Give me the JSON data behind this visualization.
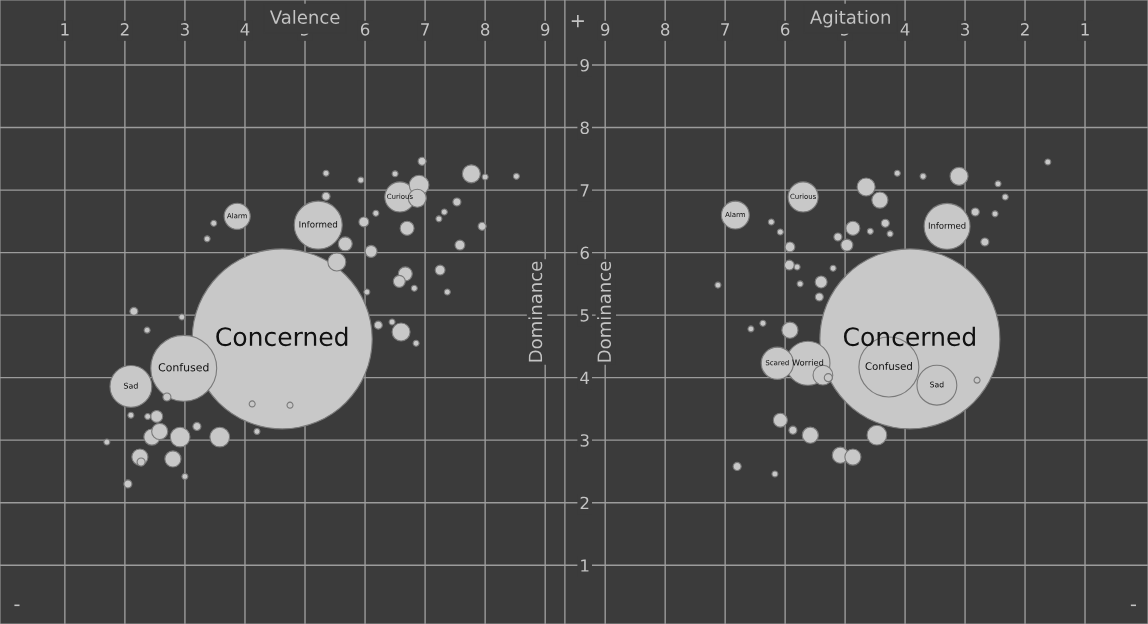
{
  "chart_data": [
    {
      "type": "bubble",
      "xlabel": "Valence",
      "ylabel": "Dominance",
      "xlim": [
        -0.08,
        9.33
      ],
      "ylim": [
        0.06,
        10.04
      ],
      "xticks": [
        1,
        2,
        3,
        4,
        5,
        6,
        7,
        8,
        9
      ],
      "yticks": [
        1,
        2,
        3,
        4,
        5,
        6,
        7,
        8,
        9
      ],
      "tick_labels": "x",
      "grid": true,
      "series": [
        {
          "color": "#c8c8c8",
          "x": [
            4.62,
            2.98,
            2.1,
            5.22,
            3.87,
            6.58,
            6.9,
            6.87,
            3.58,
            2.92,
            6.6,
            5.53,
            5.67,
            7.77,
            2.8,
            2.25,
            2.45,
            2.53,
            6.7,
            6.67,
            6.57,
            6.1,
            5.98,
            7.58,
            7.25,
            7.53,
            7.95,
            6.95,
            8.0,
            8.52,
            5.35,
            5.35,
            5.93,
            6.5,
            6.18,
            7.37,
            6.82,
            6.03,
            7.32,
            7.23,
            6.45,
            6.85,
            6.22,
            3.37,
            3.48,
            2.15,
            2.37,
            2.95,
            2.38,
            2.1,
            1.7,
            3.0,
            2.05,
            2.27,
            4.12,
            4.75,
            4.2,
            2.58,
            2.7,
            3.2
          ],
          "values": [
            4.62,
            4.15,
            3.86,
            6.44,
            6.58,
            6.89,
            7.08,
            6.87,
            3.05,
            3.05,
            4.73,
            5.85,
            6.14,
            7.26,
            2.7,
            2.73,
            3.05,
            3.38,
            6.39,
            5.66,
            5.54,
            6.02,
            6.49,
            6.12,
            5.72,
            6.81,
            6.42,
            7.46,
            7.21,
            7.22,
            7.27,
            6.9,
            7.16,
            7.26,
            6.63,
            5.37,
            5.43,
            5.37,
            6.65,
            6.54,
            4.89,
            4.55,
            4.84,
            6.22,
            6.47,
            5.06,
            4.76,
            4.97,
            3.38,
            3.4,
            2.97,
            2.42,
            2.3,
            2.65,
            3.58,
            3.56,
            3.14,
            3.14,
            3.69,
            3.22
          ],
          "sizes": [
            1,
            0.134,
            0.054,
            0.071,
            0.021,
            0.028,
            0.012,
            0.01,
            0.012,
            0.012,
            0.01,
            0.01,
            0.006,
            0.01,
            0.008,
            0.008,
            0.008,
            0.0044,
            0.006,
            0.006,
            0.0044,
            0.0044,
            0.003,
            0.003,
            0.003,
            0.002,
            0.002,
            0.002,
            0.0011,
            0.0011,
            0.0011,
            0.002,
            0.0011,
            0.0011,
            0.0011,
            0.0011,
            0.0011,
            0.0011,
            0.0011,
            0.0011,
            0.0011,
            0.0011,
            0.002,
            0.0011,
            0.0011,
            0.002,
            0.0011,
            0.0011,
            0.0011,
            0.0011,
            0.0011,
            0.0011,
            0.002,
            0.002,
            0.0011,
            0.0011,
            0.0011,
            0.008,
            0.002,
            0.002
          ]
        }
      ],
      "annotations": [
        "-",
        {
          "text": "Concerned",
          "x": 4.62,
          "y": 4.62
        },
        {
          "text": "Confused",
          "x": 2.98,
          "y": 4.15
        },
        {
          "text": "Sad",
          "x": 2.1,
          "y": 3.86
        },
        {
          "text": "Informed",
          "x": 5.22,
          "y": 6.44
        },
        {
          "text": "Alarm",
          "x": 3.87,
          "y": 6.58
        },
        {
          "text": "Curious",
          "x": 6.58,
          "y": 6.89
        }
      ]
    },
    {
      "type": "bubble",
      "xlabel": "Agitation",
      "ylabel": "Dominance",
      "xlim": [
        9.67,
        -0.05
      ],
      "ylim": [
        0.06,
        10.04
      ],
      "xticks": [
        9,
        8,
        7,
        6,
        5,
        4,
        3,
        2,
        1
      ],
      "yticks": [
        1,
        2,
        3,
        4,
        5,
        6,
        7,
        8,
        9
      ],
      "grid": true,
      "series": [
        {
          "color": "#c8c8c8",
          "x": [
            3.92,
            4.27,
            3.47,
            3.3,
            6.83,
            5.7,
            5.62,
            6.13,
            5.37,
            4.47,
            5.08,
            4.87,
            5.58,
            6.08,
            5.92,
            4.65,
            4.42,
            3.1,
            4.87,
            4.97,
            5.92,
            5.93,
            5.4,
            5.43,
            4.13,
            3.7,
            2.45,
            2.33,
            2.83,
            2.67,
            2.5,
            1.62,
            7.12,
            6.57,
            6.37,
            6.8,
            6.17,
            5.12,
            5.2,
            6.08,
            6.23,
            5.8,
            5.75,
            4.33,
            4.58,
            4.25,
            2.8,
            5.28,
            5.87
          ],
          "values": [
            4.62,
            4.17,
            3.88,
            6.42,
            6.6,
            6.89,
            4.23,
            4.23,
            4.04,
            3.08,
            2.76,
            2.73,
            3.08,
            3.32,
            4.76,
            7.05,
            6.84,
            7.22,
            6.39,
            6.12,
            6.09,
            5.8,
            5.53,
            5.29,
            7.27,
            7.22,
            7.1,
            6.89,
            6.65,
            6.17,
            6.62,
            7.45,
            5.48,
            4.78,
            4.87,
            2.58,
            2.46,
            6.25,
            5.75,
            6.33,
            6.49,
            5.77,
            5.5,
            6.47,
            6.34,
            6.3,
            3.96,
            4.0,
            3.16
          ],
          "sizes": [
            1,
            0.111,
            0.049,
            0.065,
            0.024,
            0.028,
            0.06,
            0.032,
            0.012,
            0.012,
            0.008,
            0.008,
            0.008,
            0.006,
            0.008,
            0.01,
            0.008,
            0.01,
            0.006,
            0.0044,
            0.003,
            0.003,
            0.0044,
            0.002,
            0.0011,
            0.0011,
            0.0011,
            0.0011,
            0.002,
            0.002,
            0.0011,
            0.0011,
            0.0011,
            0.0011,
            0.0011,
            0.002,
            0.0011,
            0.002,
            0.0011,
            0.0011,
            0.0011,
            0.0011,
            0.0011,
            0.002,
            0.0011,
            0.0011,
            0.0011,
            0.002,
            0.002
          ]
        }
      ],
      "annotations": [
        "+",
        "-",
        {
          "text": "Concerned",
          "x": 3.92,
          "y": 4.62
        },
        {
          "text": "Confused",
          "x": 4.27,
          "y": 4.17
        },
        {
          "text": "Sad",
          "x": 3.47,
          "y": 3.88
        },
        {
          "text": "Informed",
          "x": 3.3,
          "y": 6.42
        },
        {
          "text": "Alarm",
          "x": 6.83,
          "y": 6.6
        },
        {
          "text": "Curious",
          "x": 5.7,
          "y": 6.89
        },
        {
          "text": "Worried",
          "x": 5.62,
          "y": 4.23
        },
        {
          "text": "Scared",
          "x": 6.13,
          "y": 4.23
        }
      ]
    }
  ]
}
